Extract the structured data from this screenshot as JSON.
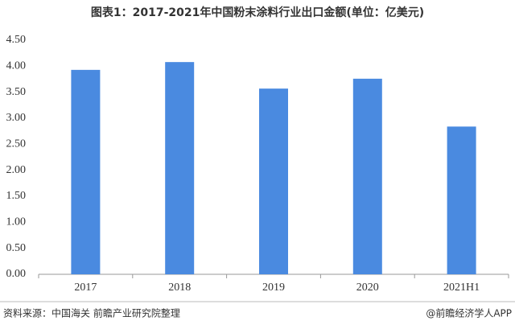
{
  "chart_data": {
    "type": "bar",
    "title": "图表1：2017-2021年中国粉末涂料行业出口金额(单位：亿美元)",
    "categories": [
      "2017",
      "2018",
      "2019",
      "2020",
      "2021H1"
    ],
    "values": [
      3.93,
      4.08,
      3.57,
      3.76,
      2.84
    ],
    "color": "#4a8ae0",
    "ylim": [
      0,
      4.5
    ],
    "yticks": [
      {
        "value": 0,
        "label": "0.00"
      },
      {
        "value": 0.5,
        "label": "0.50"
      },
      {
        "value": 1,
        "label": "1.00"
      },
      {
        "value": 1.5,
        "label": "1.50"
      },
      {
        "value": 2,
        "label": "2.00"
      },
      {
        "value": 2.5,
        "label": "2.50"
      },
      {
        "value": 3,
        "label": "3.00"
      },
      {
        "value": 3.5,
        "label": "3.50"
      },
      {
        "value": 4,
        "label": "4.00"
      },
      {
        "value": 4.5,
        "label": "4.50"
      }
    ],
    "grid": false,
    "source": "资料来源：中国海关 前瞻产业研究院整理",
    "credit": "@前瞻经济学人APP"
  }
}
